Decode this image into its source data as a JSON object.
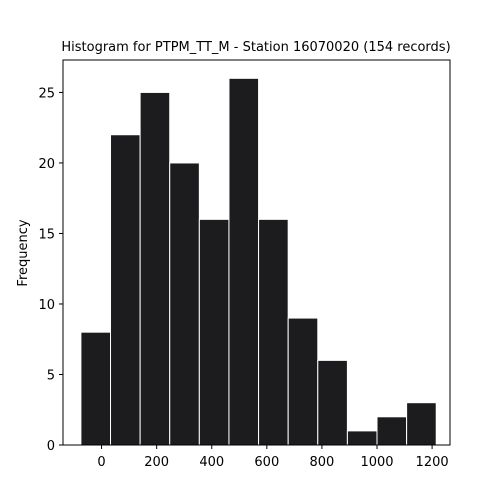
{
  "chart_data": {
    "type": "histogram",
    "title": "Histogram for PTPM_TT_M - Station 16070020 (154 records)",
    "xlabel": "",
    "ylabel": "Frequency",
    "xlim": [
      -140,
      1265
    ],
    "ylim": [
      0,
      27.3
    ],
    "xticks": [
      0,
      200,
      400,
      600,
      800,
      1000,
      1200
    ],
    "yticks": [
      0,
      5,
      10,
      15,
      20,
      25
    ],
    "bin_edges": [
      -75,
      32.5,
      140,
      247.5,
      355,
      462.5,
      570,
      677.5,
      785,
      892.5,
      1000,
      1107.5,
      1215
    ],
    "counts": [
      8,
      22,
      25,
      20,
      16,
      26,
      16,
      9,
      6,
      1,
      2,
      3
    ],
    "bar_color": "#1c1c1f",
    "edge_color": "#ffffff",
    "grid": false
  }
}
